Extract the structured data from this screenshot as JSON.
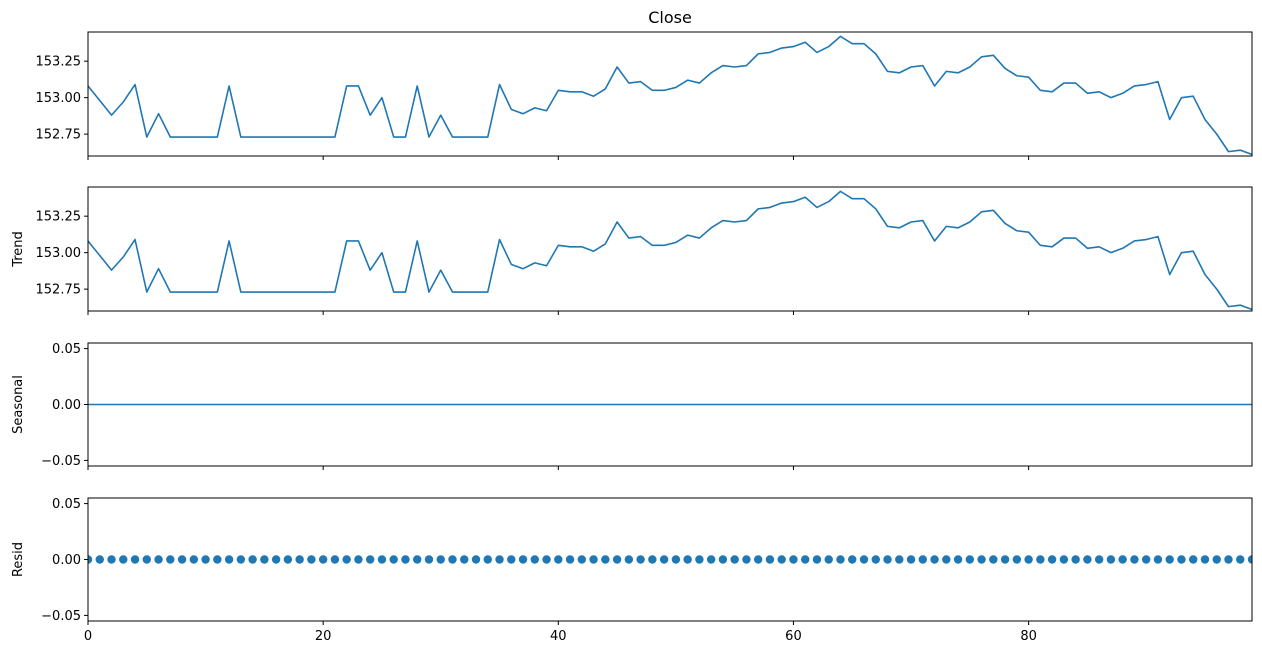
{
  "chart_data": {
    "type": "line",
    "title": "Close",
    "x": [
      0,
      1,
      2,
      3,
      4,
      5,
      6,
      7,
      8,
      9,
      10,
      11,
      12,
      13,
      14,
      15,
      16,
      17,
      18,
      19,
      20,
      21,
      22,
      23,
      24,
      25,
      26,
      27,
      28,
      29,
      30,
      31,
      32,
      33,
      34,
      35,
      36,
      37,
      38,
      39,
      40,
      41,
      42,
      43,
      44,
      45,
      46,
      47,
      48,
      49,
      50,
      51,
      52,
      53,
      54,
      55,
      56,
      57,
      58,
      59,
      60,
      61,
      62,
      63,
      64,
      65,
      66,
      67,
      68,
      69,
      70,
      71,
      72,
      73,
      74,
      75,
      76,
      77,
      78,
      79,
      80,
      81,
      82,
      83,
      84,
      85,
      86,
      87,
      88,
      89,
      90,
      91,
      92,
      93,
      94,
      95,
      96,
      97,
      98,
      99
    ],
    "xlim": [
      0,
      99
    ],
    "xticks": [
      0,
      20,
      40,
      60,
      80
    ],
    "xtick_labels": [
      "0",
      "20",
      "40",
      "60",
      "80"
    ],
    "color": "#1f77b4",
    "panels": [
      {
        "name": "close",
        "title": "Close",
        "ylabel": "",
        "kind": "line",
        "ylim": [
          152.6,
          153.45
        ],
        "yticks": [
          152.75,
          153.0,
          153.25
        ],
        "ytick_labels": [
          "152.75",
          "153.00",
          "153.25"
        ],
        "show_xtick_labels": false
      },
      {
        "name": "trend",
        "title": "",
        "ylabel": "Trend",
        "kind": "line",
        "ylim": [
          152.6,
          153.45
        ],
        "yticks": [
          152.75,
          153.0,
          153.25
        ],
        "ytick_labels": [
          "152.75",
          "153.00",
          "153.25"
        ],
        "show_xtick_labels": false
      },
      {
        "name": "seasonal",
        "title": "",
        "ylabel": "Seasonal",
        "kind": "line",
        "ylim": [
          -0.055,
          0.055
        ],
        "yticks": [
          -0.05,
          0.0,
          0.05
        ],
        "ytick_labels": [
          "−0.05",
          "0.00",
          "0.05"
        ],
        "show_xtick_labels": false
      },
      {
        "name": "resid",
        "title": "",
        "ylabel": "Resid",
        "kind": "scatter",
        "ylim": [
          -0.055,
          0.055
        ],
        "yticks": [
          -0.05,
          0.0,
          0.05
        ],
        "ytick_labels": [
          "−0.05",
          "0.00",
          "0.05"
        ],
        "show_xtick_labels": true
      }
    ],
    "series": [
      {
        "panel": "close",
        "values": [
          153.08,
          152.98,
          152.88,
          152.97,
          153.09,
          152.73,
          152.89,
          152.73,
          152.73,
          152.73,
          152.73,
          152.73,
          153.08,
          152.73,
          152.73,
          152.73,
          152.73,
          152.73,
          152.73,
          152.73,
          152.73,
          152.73,
          153.08,
          153.08,
          152.88,
          153.0,
          152.73,
          152.73,
          153.08,
          152.73,
          152.88,
          152.73,
          152.73,
          152.73,
          152.73,
          153.09,
          152.92,
          152.89,
          152.93,
          152.91,
          153.05,
          153.04,
          153.04,
          153.01,
          153.06,
          153.21,
          153.1,
          153.11,
          153.05,
          153.05,
          153.07,
          153.12,
          153.1,
          153.17,
          153.22,
          153.21,
          153.22,
          153.3,
          153.31,
          153.34,
          153.35,
          153.38,
          153.31,
          153.35,
          153.42,
          153.37,
          153.37,
          153.3,
          153.18,
          153.17,
          153.21,
          153.22,
          153.08,
          153.18,
          153.17,
          153.21,
          153.28,
          153.29,
          153.2,
          153.15,
          153.14,
          153.05,
          153.04,
          153.1,
          153.1,
          153.03,
          153.04,
          153.0,
          153.03,
          153.08,
          153.09,
          153.11,
          152.85,
          153.0,
          153.01,
          152.85,
          152.75,
          152.63,
          152.64,
          152.61
        ]
      },
      {
        "panel": "trend",
        "values": [
          153.08,
          152.98,
          152.88,
          152.97,
          153.09,
          152.73,
          152.89,
          152.73,
          152.73,
          152.73,
          152.73,
          152.73,
          153.08,
          152.73,
          152.73,
          152.73,
          152.73,
          152.73,
          152.73,
          152.73,
          152.73,
          152.73,
          153.08,
          153.08,
          152.88,
          153.0,
          152.73,
          152.73,
          153.08,
          152.73,
          152.88,
          152.73,
          152.73,
          152.73,
          152.73,
          153.09,
          152.92,
          152.89,
          152.93,
          152.91,
          153.05,
          153.04,
          153.04,
          153.01,
          153.06,
          153.21,
          153.1,
          153.11,
          153.05,
          153.05,
          153.07,
          153.12,
          153.1,
          153.17,
          153.22,
          153.21,
          153.22,
          153.3,
          153.31,
          153.34,
          153.35,
          153.38,
          153.31,
          153.35,
          153.42,
          153.37,
          153.37,
          153.3,
          153.18,
          153.17,
          153.21,
          153.22,
          153.08,
          153.18,
          153.17,
          153.21,
          153.28,
          153.29,
          153.2,
          153.15,
          153.14,
          153.05,
          153.04,
          153.1,
          153.1,
          153.03,
          153.04,
          153.0,
          153.03,
          153.08,
          153.09,
          153.11,
          152.85,
          153.0,
          153.01,
          152.85,
          152.75,
          152.63,
          152.64,
          152.61
        ]
      },
      {
        "panel": "seasonal",
        "values": [
          0,
          0,
          0,
          0,
          0,
          0,
          0,
          0,
          0,
          0,
          0,
          0,
          0,
          0,
          0,
          0,
          0,
          0,
          0,
          0,
          0,
          0,
          0,
          0,
          0,
          0,
          0,
          0,
          0,
          0,
          0,
          0,
          0,
          0,
          0,
          0,
          0,
          0,
          0,
          0,
          0,
          0,
          0,
          0,
          0,
          0,
          0,
          0,
          0,
          0,
          0,
          0,
          0,
          0,
          0,
          0,
          0,
          0,
          0,
          0,
          0,
          0,
          0,
          0,
          0,
          0,
          0,
          0,
          0,
          0,
          0,
          0,
          0,
          0,
          0,
          0,
          0,
          0,
          0,
          0,
          0,
          0,
          0,
          0,
          0,
          0,
          0,
          0,
          0,
          0,
          0,
          0,
          0,
          0,
          0,
          0,
          0,
          0,
          0,
          0
        ]
      },
      {
        "panel": "resid",
        "values": [
          0,
          0,
          0,
          0,
          0,
          0,
          0,
          0,
          0,
          0,
          0,
          0,
          0,
          0,
          0,
          0,
          0,
          0,
          0,
          0,
          0,
          0,
          0,
          0,
          0,
          0,
          0,
          0,
          0,
          0,
          0,
          0,
          0,
          0,
          0,
          0,
          0,
          0,
          0,
          0,
          0,
          0,
          0,
          0,
          0,
          0,
          0,
          0,
          0,
          0,
          0,
          0,
          0,
          0,
          0,
          0,
          0,
          0,
          0,
          0,
          0,
          0,
          0,
          0,
          0,
          0,
          0,
          0,
          0,
          0,
          0,
          0,
          0,
          0,
          0,
          0,
          0,
          0,
          0,
          0,
          0,
          0,
          0,
          0,
          0,
          0,
          0,
          0,
          0,
          0,
          0,
          0,
          0,
          0,
          0,
          0,
          0,
          0,
          0,
          0
        ]
      }
    ]
  }
}
